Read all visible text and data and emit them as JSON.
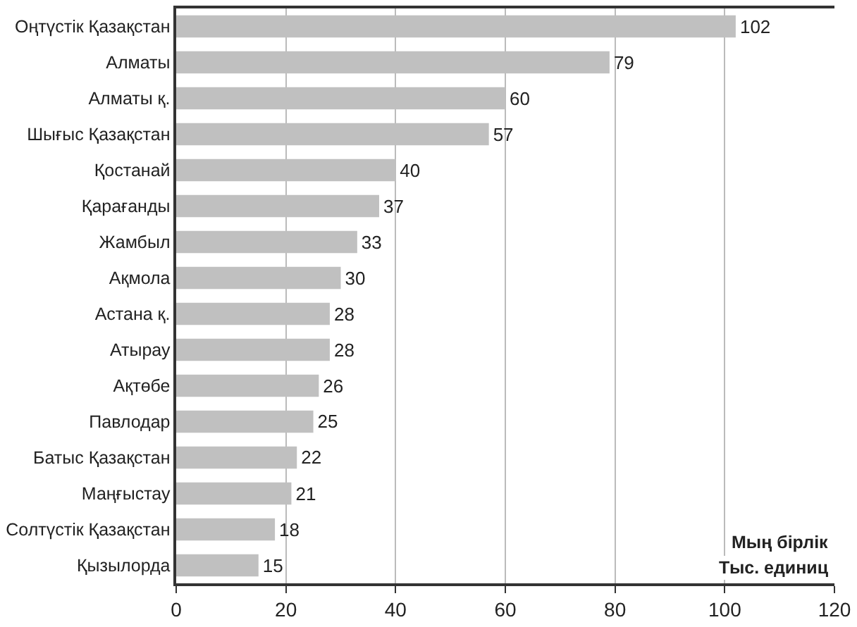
{
  "chart_data": {
    "type": "bar",
    "orientation": "horizontal",
    "categories": [
      "Оңтүстік Қазақстан",
      "Алматы",
      "Алматы қ.",
      "Шығыс Қазақстан",
      "Қостанай",
      "Қарағанды",
      "Жамбыл",
      "Ақмола",
      "Астана қ.",
      "Атырау",
      "Ақтөбе",
      "Павлодар",
      "Батыс Қазақстан",
      "Маңғыстау",
      "Солтүстік Қазақстан",
      "Қызылорда"
    ],
    "values": [
      102,
      79,
      60,
      57,
      40,
      37,
      33,
      30,
      28,
      28,
      26,
      25,
      22,
      21,
      18,
      15
    ],
    "color": "#c0c0c0",
    "xlim": [
      0,
      120
    ],
    "xticks": [
      0,
      20,
      40,
      60,
      80,
      100,
      120
    ],
    "grid": "x",
    "data_labels": true,
    "annotations": [
      "Мың бірлік",
      "Тыс. единиц"
    ]
  }
}
